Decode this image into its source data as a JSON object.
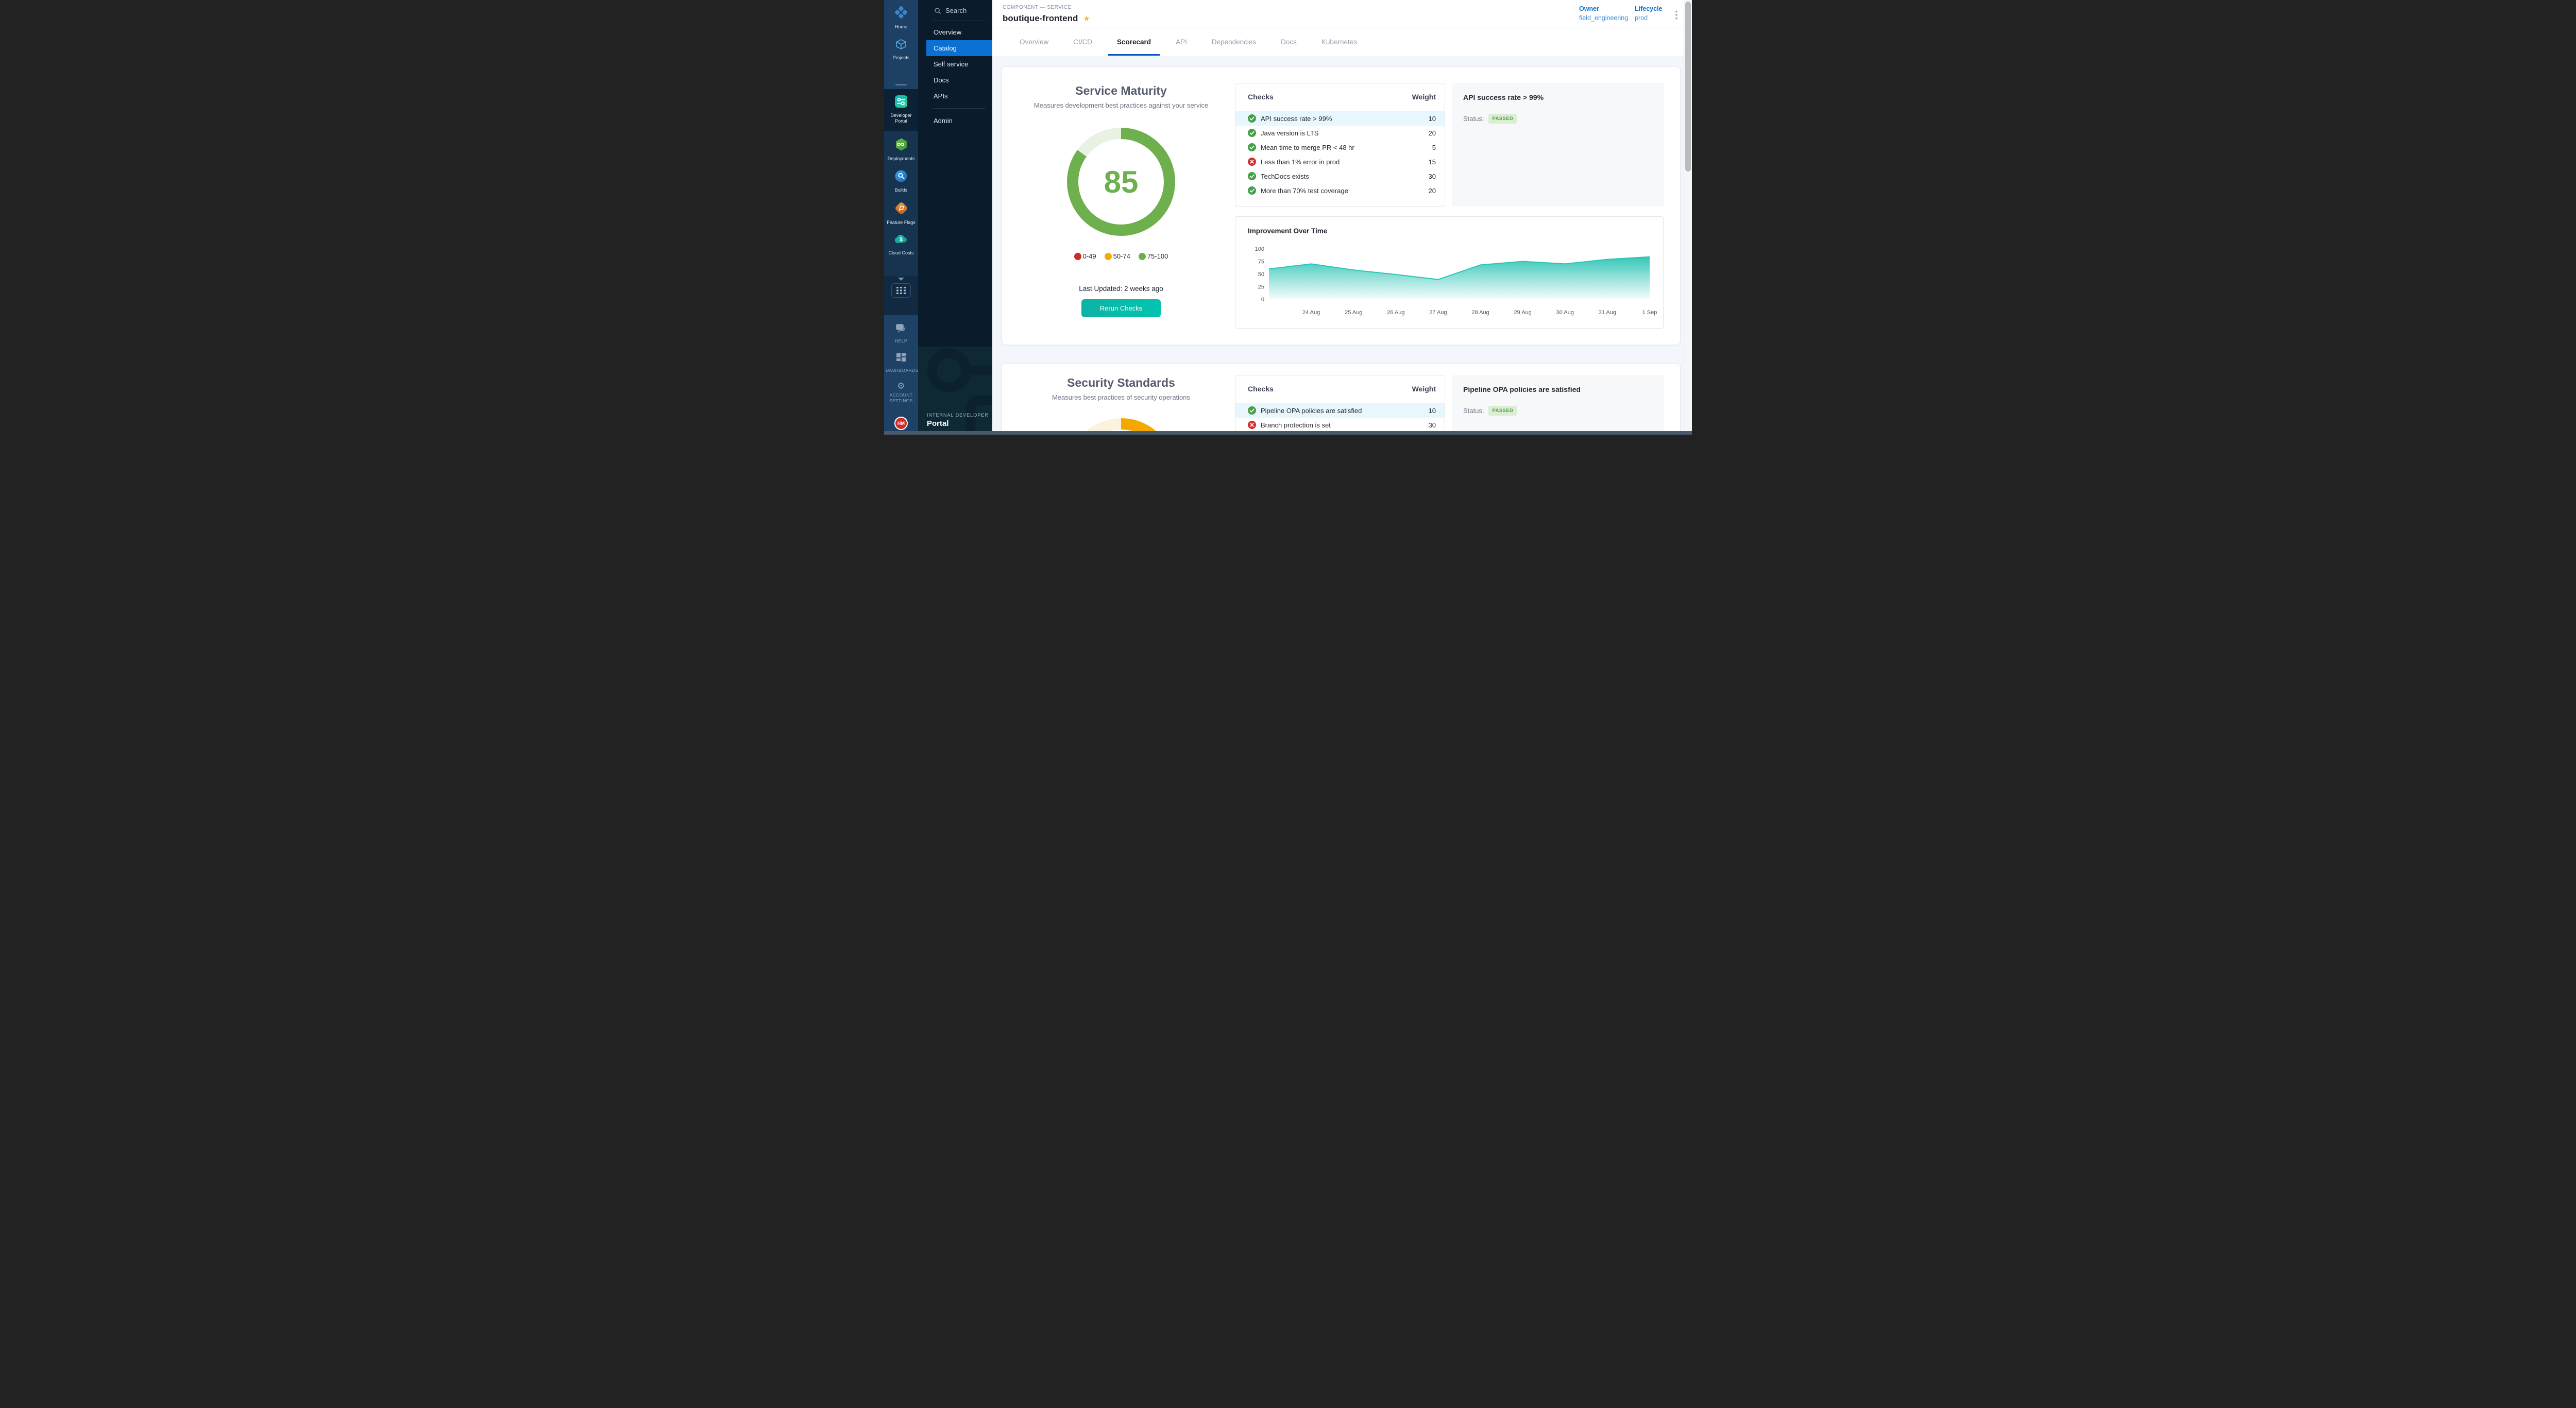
{
  "sidebar_rail": {
    "modules_top": [
      {
        "label": "Home"
      },
      {
        "label": "Projects"
      }
    ],
    "active_module": {
      "label": "Developer Portal"
    },
    "modules": [
      {
        "label": "Deployments"
      },
      {
        "label": "Builds"
      },
      {
        "label": "Feature Flags"
      },
      {
        "label": "Cloud Costs"
      }
    ],
    "bottom_items": [
      {
        "label": "HELP"
      },
      {
        "label": "DASHBOARDS"
      },
      {
        "label": "ACCOUNT SETTINGS"
      }
    ],
    "avatar_initials": "HM"
  },
  "sidebar_nav": {
    "search_label": "Search",
    "items": [
      {
        "label": "Overview",
        "active": false
      },
      {
        "label": "Catalog",
        "active": true
      },
      {
        "label": "Self service",
        "active": false
      },
      {
        "label": "Docs",
        "active": false
      },
      {
        "label": "APIs",
        "active": false
      },
      {
        "label": "Admin",
        "active": false
      }
    ],
    "brand_line1": "INTERNAL DEVELOPER",
    "brand_line2": "Portal"
  },
  "header": {
    "breadcrumb": "COMPONENT — SERVICE",
    "title": "boutique-frontend",
    "owner_label": "Owner",
    "owner_value": "field_engineering",
    "lifecycle_label": "Lifecycle",
    "lifecycle_value": "prod"
  },
  "tabs": {
    "items": [
      {
        "label": "Overview",
        "active": false
      },
      {
        "label": "CI/CD",
        "active": false
      },
      {
        "label": "Scorecard",
        "active": true
      },
      {
        "label": "API",
        "active": false
      },
      {
        "label": "Dependencies",
        "active": false
      },
      {
        "label": "Docs",
        "active": false
      },
      {
        "label": "Kubernetes",
        "active": false
      }
    ]
  },
  "maturity": {
    "title": "Service Maturity",
    "subtitle": "Measures development best practices against your service",
    "score": "85",
    "score_percent": 85,
    "legend": [
      {
        "label": "0-49",
        "color": "#cf2b27"
      },
      {
        "label": "50-74",
        "color": "#f5ac00"
      },
      {
        "label": "75-100",
        "color": "#6cb04c"
      }
    ],
    "last_updated": "Last Updated: 2 weeks ago",
    "rerun_button": "Rerun Checks",
    "checks": {
      "col_checks": "Checks",
      "col_weight": "Weight",
      "rows": [
        {
          "label": "API success rate > 99%",
          "weight": "10",
          "status": "passed",
          "highlight": true
        },
        {
          "label": "Java version is LTS",
          "weight": "20",
          "status": "passed"
        },
        {
          "label": "Mean time to merge PR < 48 hr",
          "weight": "5",
          "status": "passed"
        },
        {
          "label": "Less than 1% error in prod",
          "weight": "15",
          "status": "failed"
        },
        {
          "label": "TechDocs exists",
          "weight": "30",
          "status": "passed"
        },
        {
          "label": "More than 70% test coverage",
          "weight": "20",
          "status": "passed"
        }
      ]
    },
    "detail": {
      "title": "API success rate > 99%",
      "status_label": "Status:",
      "status_value": "PASSED"
    }
  },
  "chart_data": {
    "type": "area",
    "title": "Improvement Over Time",
    "x": [
      "",
      "24 Aug",
      "25 Aug",
      "26 Aug",
      "27 Aug",
      "28 Aug",
      "29 Aug",
      "30 Aug",
      "31 Aug",
      "1 Sep"
    ],
    "values": [
      60,
      70,
      58,
      49,
      39,
      68,
      75,
      70,
      79,
      84
    ],
    "xlabel": "",
    "ylabel": "",
    "ylim": [
      0,
      100
    ],
    "yticks": [
      0,
      25,
      50,
      75,
      100
    ],
    "grid": false,
    "legend_position": "none",
    "series_color": "#2bc4b4"
  },
  "security": {
    "title": "Security Standards",
    "subtitle": "Measures best practices of security operations",
    "score_percent": 50,
    "checks": {
      "col_checks": "Checks",
      "col_weight": "Weight",
      "rows": [
        {
          "label": "Pipeline OPA policies are satisfied",
          "weight": "10",
          "status": "passed",
          "highlight": true
        },
        {
          "label": "Branch protection is set",
          "weight": "30",
          "status": "failed"
        },
        {
          "label": "",
          "weight": "",
          "status": "passed",
          "partial": true
        }
      ]
    },
    "detail": {
      "title": "Pipeline OPA policies are satisfied",
      "status_label": "Status:",
      "status_value": "PASSED"
    }
  },
  "colors": {
    "accent_blue": "#0a70d2",
    "tab_underline_blue": "#0b4fc4",
    "link_blue": "#3d8ad8",
    "score_green": "#6fb04e",
    "security_orange": "#f5a800",
    "passed_green": "#56a04e",
    "failed_red": "#d32f2f",
    "highlight_row": "#e8f6fd",
    "button_teal": "#02c4b0",
    "gold_star": "#f3b33c"
  }
}
